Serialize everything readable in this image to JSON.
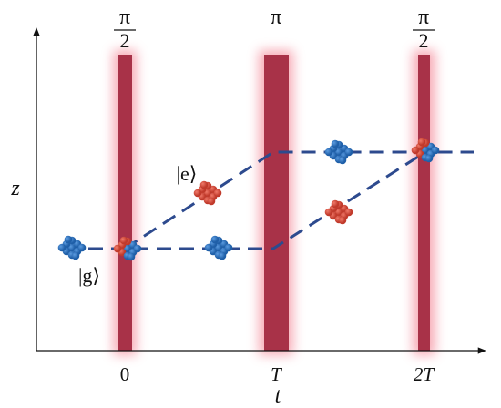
{
  "axes": {
    "y_label": "z",
    "x_label": "t"
  },
  "pulses": [
    {
      "top_numerator": "π",
      "top_denominator": "2",
      "bottom": "0"
    },
    {
      "top": "π",
      "bottom": "T"
    },
    {
      "top_numerator": "π",
      "top_denominator": "2",
      "bottom": "2T"
    }
  ],
  "states": {
    "excited": "|e⟩",
    "ground": "|g⟩"
  }
}
